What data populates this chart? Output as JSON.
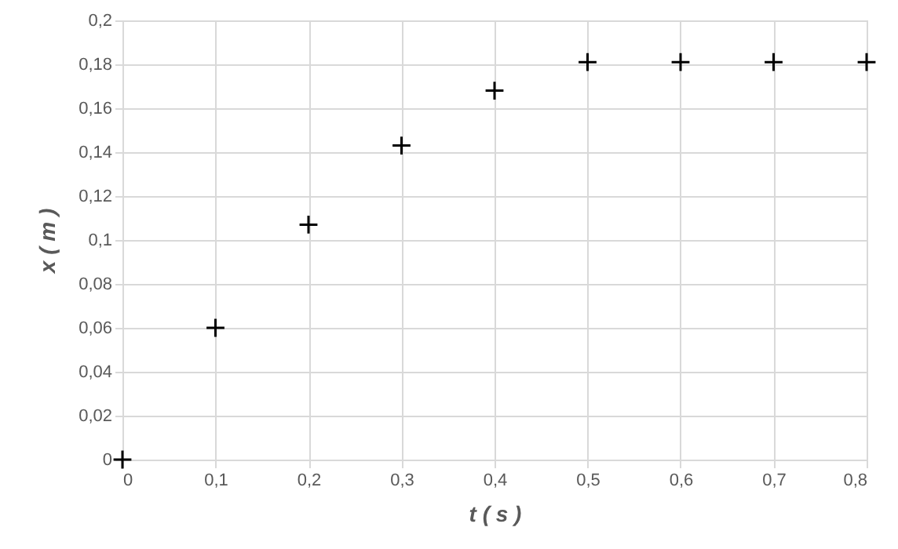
{
  "chart_data": {
    "type": "scatter",
    "xlabel": "t ( s )",
    "ylabel": "x ( m )",
    "x": [
      0,
      0.1,
      0.2,
      0.3,
      0.4,
      0.5,
      0.6,
      0.7,
      0.8
    ],
    "series": [
      {
        "color": "#000000",
        "values": [
          0,
          0.06,
          0.107,
          0.143,
          0.168,
          0.181,
          0.181,
          0.181,
          0.181
        ]
      }
    ],
    "xlim": [
      0,
      0.8
    ],
    "ylim": [
      0,
      0.2
    ],
    "xticks": [
      0,
      {
        "value": 0.1,
        "label": "0,1"
      },
      {
        "value": 0.2,
        "label": "0,2"
      },
      {
        "value": 0.3,
        "label": "0,3"
      },
      {
        "value": 0.4,
        "label": "0,4"
      },
      {
        "value": 0.5,
        "label": "0,5"
      },
      {
        "value": 0.6,
        "label": "0,6"
      },
      {
        "value": 0.7,
        "label": "0,7"
      },
      {
        "value": 0.8,
        "label": "0,8"
      }
    ],
    "yticks": [
      0,
      {
        "value": 0.02,
        "label": "0,02"
      },
      {
        "value": 0.04,
        "label": "0,04"
      },
      {
        "value": 0.06,
        "label": "0,06"
      },
      {
        "value": 0.08,
        "label": "0,08"
      },
      {
        "value": 0.1,
        "label": "0,1"
      },
      {
        "value": 0.12,
        "label": "0,12"
      },
      {
        "value": 0.14,
        "label": "0,14"
      },
      {
        "value": 0.16,
        "label": "0,16"
      },
      {
        "value": 0.18,
        "label": "0,18"
      },
      {
        "value": 0.2,
        "label": "0,2"
      }
    ],
    "grid": true,
    "marker": "cross"
  }
}
